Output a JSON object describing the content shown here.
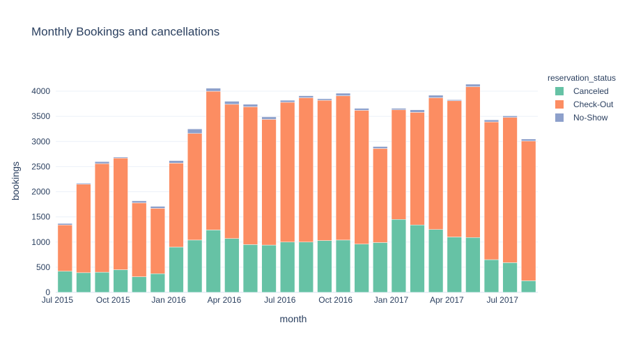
{
  "chart_data": {
    "type": "bar",
    "stacked": true,
    "title": "Monthly Bookings and cancellations",
    "xlabel": "month",
    "ylabel": "bookings",
    "ylim": [
      0,
      4250
    ],
    "y_ticks": [
      0,
      500,
      1000,
      1500,
      2000,
      2500,
      3000,
      3500,
      4000
    ],
    "x_ticks": [
      {
        "index": 0,
        "label": "Jul 2015"
      },
      {
        "index": 3,
        "label": "Oct 2015"
      },
      {
        "index": 6,
        "label": "Jan 2016"
      },
      {
        "index": 9,
        "label": "Apr 2016"
      },
      {
        "index": 12,
        "label": "Jul 2016"
      },
      {
        "index": 15,
        "label": "Oct 2016"
      },
      {
        "index": 18,
        "label": "Jan 2017"
      },
      {
        "index": 21,
        "label": "Apr 2017"
      },
      {
        "index": 24,
        "label": "Jul 2017"
      }
    ],
    "categories": [
      "2015-07",
      "2015-08",
      "2015-09",
      "2015-10",
      "2015-11",
      "2015-12",
      "2016-01",
      "2016-02",
      "2016-03",
      "2016-04",
      "2016-05",
      "2016-06",
      "2016-07",
      "2016-08",
      "2016-09",
      "2016-10",
      "2016-11",
      "2016-12",
      "2017-01",
      "2017-02",
      "2017-03",
      "2017-04",
      "2017-05",
      "2017-06",
      "2017-07",
      "2017-08"
    ],
    "legend_title": "reservation_status",
    "legend_position": "right",
    "grid": true,
    "series": [
      {
        "name": "Canceled",
        "color": "#66c2a5",
        "values": [
          420,
          390,
          400,
          450,
          310,
          370,
          900,
          1040,
          1240,
          1070,
          950,
          940,
          1000,
          1000,
          1030,
          1040,
          960,
          990,
          1450,
          1340,
          1250,
          1100,
          1090,
          650,
          590,
          230
        ]
      },
      {
        "name": "Check-Out",
        "color": "#fc8d62",
        "values": [
          920,
          1760,
          2160,
          2220,
          1470,
          1300,
          1670,
          2120,
          2760,
          2670,
          2740,
          2500,
          2780,
          2870,
          2790,
          2870,
          2660,
          1870,
          2180,
          2240,
          2620,
          2710,
          3000,
          2740,
          2890,
          2780
        ]
      },
      {
        "name": "No-Show",
        "color": "#8da0cb",
        "values": [
          30,
          20,
          40,
          20,
          40,
          40,
          50,
          90,
          60,
          60,
          50,
          50,
          40,
          40,
          30,
          50,
          40,
          40,
          30,
          50,
          50,
          20,
          50,
          40,
          30,
          40
        ]
      }
    ]
  }
}
